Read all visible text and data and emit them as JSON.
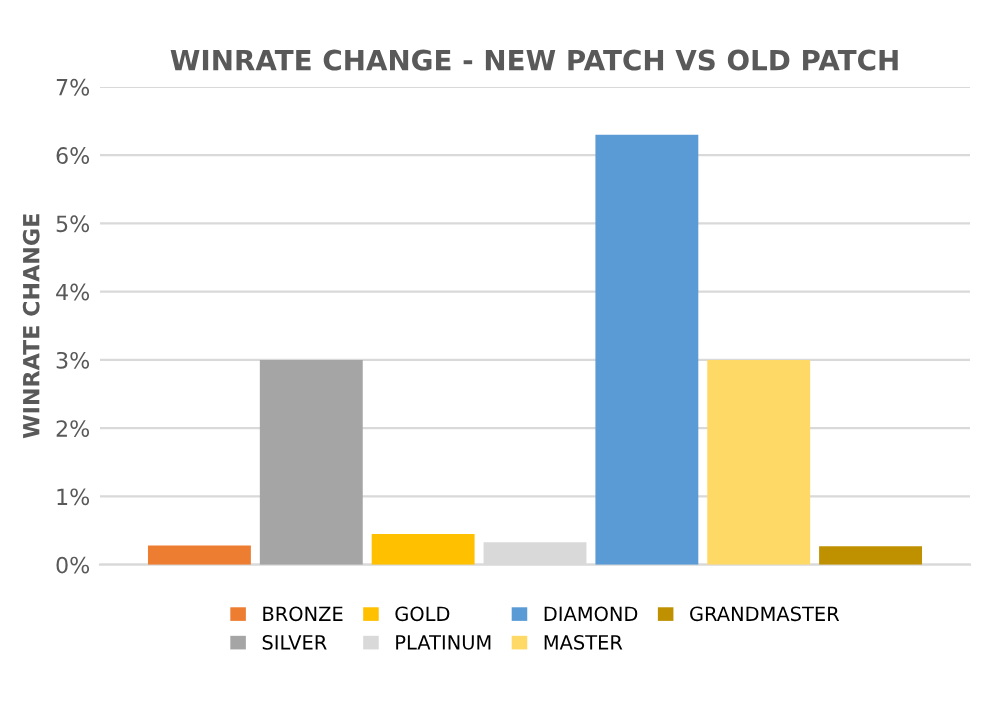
{
  "chart_data": {
    "type": "bar",
    "title": "WINRATE CHANGE - NEW PATCH VS OLD PATCH",
    "ylabel": "WINRATE CHANGE",
    "categories": [
      null
    ],
    "series": [
      {
        "name": "BRONZE",
        "color": "#ed7d31",
        "values": [
          0.28
        ]
      },
      {
        "name": "SILVER",
        "color": "#a5a5a5",
        "values": [
          3.0
        ]
      },
      {
        "name": "GOLD",
        "color": "#ffc000",
        "values": [
          0.45
        ]
      },
      {
        "name": "PLATINUM",
        "color": "#d9d9d9",
        "values": [
          0.33
        ]
      },
      {
        "name": "DIAMOND",
        "color": "#5b9bd5",
        "values": [
          6.3
        ]
      },
      {
        "name": "MASTER",
        "color": "#ffd966",
        "values": [
          3.0
        ]
      },
      {
        "name": "GRANDMASTER",
        "color": "#bf9000",
        "values": [
          0.27
        ]
      }
    ],
    "ylim": [
      0,
      7
    ],
    "yticks": [
      {
        "value": 0,
        "label": "0%"
      },
      {
        "value": 1,
        "label": "1%"
      },
      {
        "value": 2,
        "label": "2%"
      },
      {
        "value": 3,
        "label": "3%"
      },
      {
        "value": 4,
        "label": "4%"
      },
      {
        "value": 5,
        "label": "5%"
      },
      {
        "value": 6,
        "label": "6%"
      },
      {
        "value": 7,
        "label": "7%"
      }
    ],
    "grid": "y",
    "legend": "bottom"
  }
}
